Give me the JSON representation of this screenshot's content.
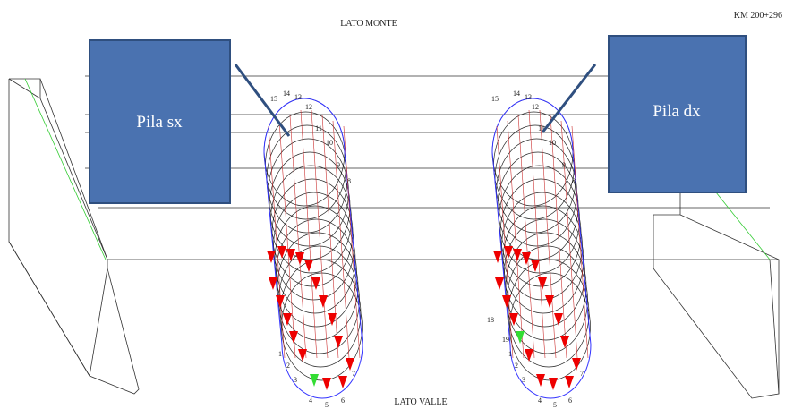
{
  "header": {
    "title": "LATO MONTE",
    "km": "KM 200+296"
  },
  "footer": {
    "title": "LATO VALLE"
  },
  "callouts": [
    {
      "label": "Pila sx"
    },
    {
      "label": "Pila dx"
    }
  ],
  "piers": [
    {
      "labels": [
        "15",
        "14",
        "13",
        "12",
        "11",
        "10",
        "9",
        "8",
        "1",
        "2",
        "3",
        "4",
        "5",
        "6",
        "7"
      ]
    },
    {
      "labels": [
        "15",
        "14",
        "13",
        "12",
        "11",
        "10",
        "9",
        "8",
        "18",
        "19",
        "1",
        "2",
        "3",
        "4",
        "5",
        "6",
        "7"
      ]
    }
  ]
}
